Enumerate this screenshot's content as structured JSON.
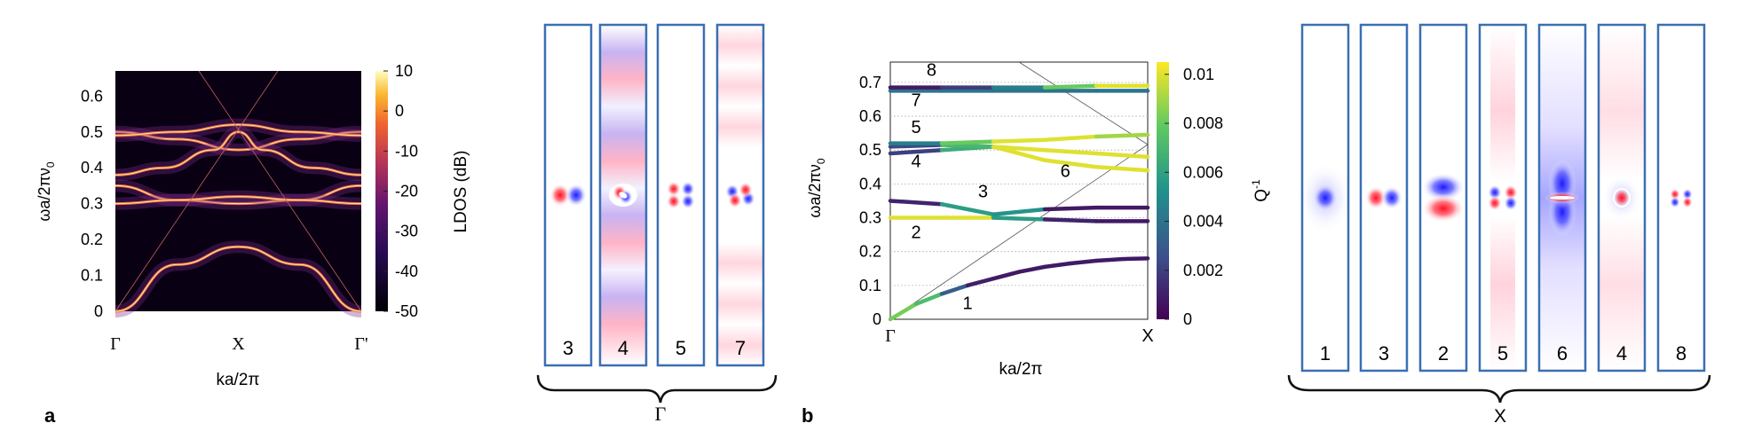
{
  "panel_labels": {
    "a": "a",
    "b": "b"
  },
  "gamma_label": "Γ",
  "x_label": "X",
  "chart_data": [
    {
      "type": "heatmap",
      "panel": "a",
      "xlabel": "ka/2π",
      "ylabel": "ωa/2πν",
      "ylabel_sub": "0",
      "xticks": [
        "Γ",
        "X",
        "Γ'"
      ],
      "yticks": [
        0,
        0.1,
        0.2,
        0.3,
        0.4,
        0.5,
        0.6
      ],
      "ylim": [
        0,
        0.67
      ],
      "colorbar": {
        "label": "LDOS (dB)",
        "ticks": [
          10,
          0,
          -10,
          -20,
          -30,
          -40,
          -50
        ],
        "range": [
          -50,
          10
        ]
      },
      "bands": [
        {
          "x": [
            0,
            0.25,
            0.5,
            0.75,
            1
          ],
          "y": [
            0.0,
            0.13,
            0.18,
            0.13,
            0.0
          ]
        },
        {
          "x": [
            0,
            0.25,
            0.5,
            0.75,
            1
          ],
          "y": [
            0.35,
            0.31,
            0.3,
            0.31,
            0.35
          ]
        },
        {
          "x": [
            0,
            0.25,
            0.5,
            0.75,
            1
          ],
          "y": [
            0.3,
            0.31,
            0.32,
            0.31,
            0.3
          ]
        },
        {
          "x": [
            0,
            0.25,
            0.5,
            0.75,
            1
          ],
          "y": [
            0.5,
            0.48,
            0.45,
            0.48,
            0.5
          ]
        },
        {
          "x": [
            0,
            0.25,
            0.5,
            0.75,
            1
          ],
          "y": [
            0.49,
            0.5,
            0.52,
            0.5,
            0.49
          ]
        },
        {
          "x": [
            0,
            0.2,
            0.4,
            0.5,
            0.6,
            0.8,
            1
          ],
          "y": [
            0.38,
            0.4,
            0.45,
            0.5,
            0.45,
            0.4,
            0.38
          ]
        }
      ]
    },
    {
      "type": "line",
      "panel": "b",
      "xlabel": "ka/2π",
      "ylabel": "ωa/2πν",
      "ylabel_sub": "0",
      "xticks": [
        "Γ",
        "X"
      ],
      "yticks": [
        0,
        0.1,
        0.2,
        0.3,
        0.4,
        0.5,
        0.6,
        0.7
      ],
      "ylim": [
        0,
        0.76
      ],
      "colorbar": {
        "label": "Q",
        "label_sup": "-1",
        "ticks": [
          0.01,
          0.008,
          0.006,
          0.004,
          0.002,
          0
        ],
        "range": [
          0,
          0.0105
        ]
      },
      "band_labels": [
        {
          "text": "1",
          "x": 0.3,
          "y": 0.03
        },
        {
          "text": "2",
          "x": 0.1,
          "y": 0.24
        },
        {
          "text": "3",
          "x": 0.36,
          "y": 0.36
        },
        {
          "text": "4",
          "x": 0.1,
          "y": 0.45
        },
        {
          "text": "5",
          "x": 0.1,
          "y": 0.55
        },
        {
          "text": "6",
          "x": 0.68,
          "y": 0.42
        },
        {
          "text": "7",
          "x": 0.1,
          "y": 0.63
        },
        {
          "text": "8",
          "x": 0.16,
          "y": 0.72
        }
      ],
      "series": [
        {
          "x": [
            0,
            0.1,
            0.2,
            0.3,
            0.4,
            0.5,
            0.6,
            0.7,
            0.8,
            0.9,
            1.0
          ],
          "y": [
            0.0,
            0.045,
            0.075,
            0.1,
            0.12,
            0.14,
            0.155,
            0.165,
            0.173,
            0.178,
            0.18
          ],
          "q": [
            0.007,
            0.0095,
            0.005,
            0.0012,
            0.0008,
            0.0008,
            0.0008,
            0.0008,
            0.0008,
            0.0008,
            0.0008
          ]
        },
        {
          "x": [
            0,
            0.2,
            0.4,
            0.6,
            0.8,
            1.0
          ],
          "y": [
            0.3,
            0.3,
            0.3,
            0.295,
            0.29,
            0.29
          ],
          "q": [
            0.01,
            0.01,
            0.01,
            0.0015,
            0.0008,
            0.0008
          ]
        },
        {
          "x": [
            0,
            0.2,
            0.4,
            0.6,
            0.8,
            1.0
          ],
          "y": [
            0.35,
            0.34,
            0.31,
            0.325,
            0.33,
            0.33
          ],
          "q": [
            0.0008,
            0.0015,
            0.01,
            0.0008,
            0.0008,
            0.0008
          ]
        },
        {
          "x": [
            0,
            0.2,
            0.4,
            0.6,
            0.8,
            1.0
          ],
          "y": [
            0.49,
            0.5,
            0.51,
            0.47,
            0.45,
            0.44
          ],
          "q": [
            0.001,
            0.003,
            0.01,
            0.01,
            0.01,
            0.01
          ]
        },
        {
          "x": [
            0,
            0.2,
            0.4,
            0.6,
            0.8,
            1.0
          ],
          "y": [
            0.51,
            0.515,
            0.51,
            0.5,
            0.49,
            0.48
          ],
          "q": [
            0.0008,
            0.004,
            0.01,
            0.01,
            0.01,
            0.01
          ]
        },
        {
          "x": [
            0,
            0.2,
            0.4,
            0.6,
            0.8,
            1.0
          ],
          "y": [
            0.52,
            0.52,
            0.525,
            0.53,
            0.54,
            0.545
          ],
          "q": [
            0.003,
            0.006,
            0.01,
            0.01,
            0.01,
            0.008
          ]
        },
        {
          "x": [
            0,
            0.2,
            0.4,
            0.6,
            0.8,
            1.0
          ],
          "y": [
            0.675,
            0.675,
            0.675,
            0.675,
            0.675,
            0.675
          ],
          "q": [
            0.004,
            0.004,
            0.004,
            0.004,
            0.004,
            0.004
          ]
        },
        {
          "x": [
            0,
            0.2,
            0.4,
            0.6,
            0.8,
            1.0
          ],
          "y": [
            0.685,
            0.685,
            0.685,
            0.685,
            0.69,
            0.69
          ],
          "q": [
            0.0008,
            0.0008,
            0.003,
            0.006,
            0.01,
            0.01
          ]
        }
      ]
    }
  ],
  "gamma_modes": [
    {
      "label": "3",
      "kind": "dipole-h"
    },
    {
      "label": "4",
      "kind": "stripes"
    },
    {
      "label": "5",
      "kind": "quad"
    },
    {
      "label": "7",
      "kind": "flower"
    }
  ],
  "x_modes": [
    {
      "label": "1",
      "kind": "mono"
    },
    {
      "label": "3",
      "kind": "dipole-h"
    },
    {
      "label": "2",
      "kind": "dipole-v"
    },
    {
      "label": "5",
      "kind": "cross"
    },
    {
      "label": "6",
      "kind": "vertical-blue"
    },
    {
      "label": "4",
      "kind": "ring"
    },
    {
      "label": "8",
      "kind": "small-quad"
    }
  ],
  "colors": {
    "frame": "#3a6fb3",
    "red": "#e8283a",
    "blue": "#2a2ee8",
    "heatmap_bg": "#0a0014"
  }
}
